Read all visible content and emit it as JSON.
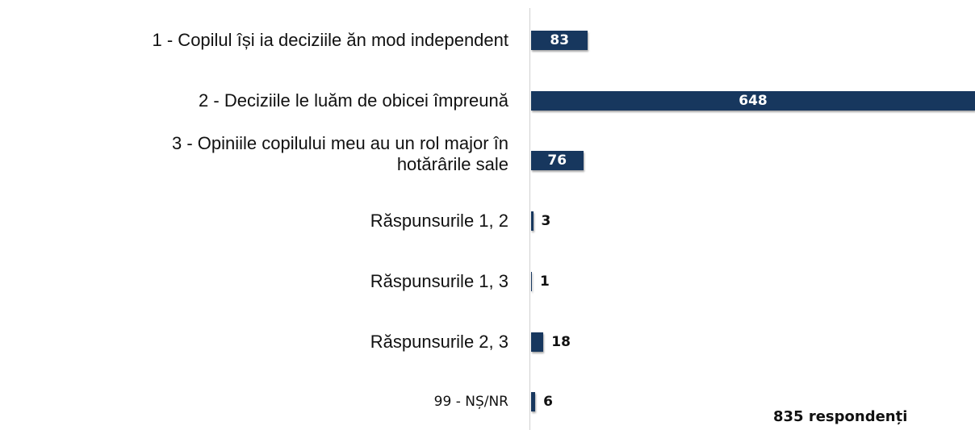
{
  "chart_data": {
    "type": "bar",
    "orientation": "horizontal",
    "categories": [
      "1 - Copilul își ia deciziile ăn mod independent",
      "2 - Deciziile le luăm de obicei împreună",
      "3 - Opiniile copilului meu au un rol major în\nhotărârile sale",
      "Răspunsurile 1, 2",
      "Răspunsurile 1, 3",
      "Răspunsurile 2, 3",
      "99 - NȘ/NR"
    ],
    "values": [
      83,
      648,
      76,
      3,
      1,
      18,
      6
    ],
    "color": "#17375e",
    "annotation": "835 respondenți"
  }
}
